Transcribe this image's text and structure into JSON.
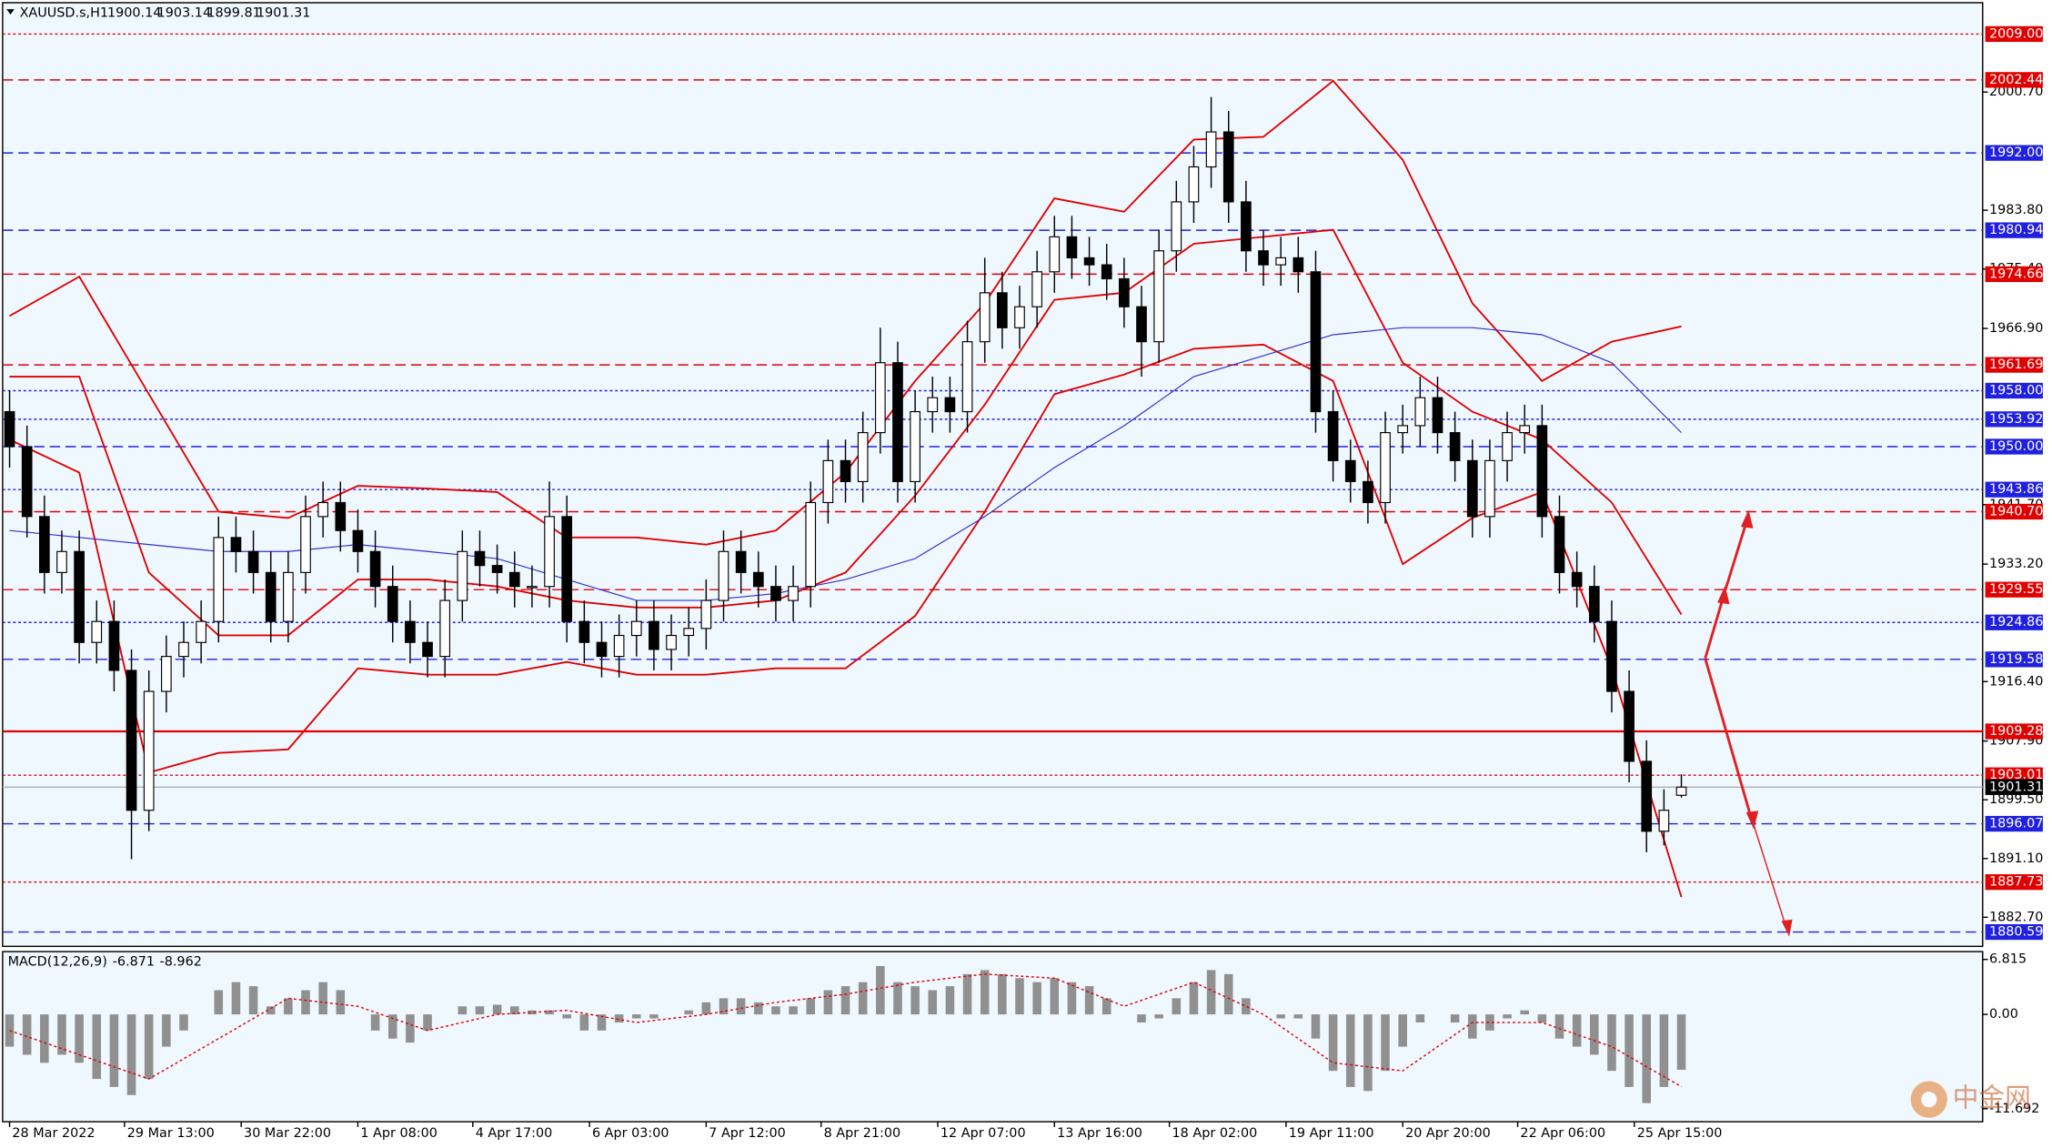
{
  "chart_data": {
    "type": "candlestick",
    "title": "XAUUSD.s,H1",
    "up_color": "#ffffff",
    "down_color": "#000000",
    "edge_color": "#000000",
    "open": [
      1955,
      1950,
      1940,
      1932,
      1935,
      1922,
      1925,
      1918,
      1898,
      1915,
      1920,
      1922,
      1925,
      1937,
      1935,
      1932,
      1925,
      1932,
      1940,
      1942,
      1938,
      1935,
      1930,
      1925,
      1922,
      1920,
      1928,
      1935,
      1933,
      1932,
      1930,
      1930,
      1940,
      1925,
      1922,
      1920,
      1923,
      1925,
      1921,
      1923,
      1924,
      1928,
      1935,
      1932,
      1930,
      1928,
      1930,
      1942,
      1948,
      1945,
      1952,
      1962,
      1945,
      1955,
      1957,
      1955,
      1965,
      1972,
      1967,
      1970,
      1975,
      1980,
      1977,
      1976,
      1974,
      1970,
      1965,
      1978,
      1985,
      1990,
      1995,
      1985,
      1978,
      1976,
      1977,
      1975,
      1955,
      1948,
      1945,
      1942,
      1952,
      1953,
      1957,
      1952,
      1948,
      1940,
      1948,
      1952,
      1953,
      1940,
      1932,
      1930,
      1925,
      1915,
      1905,
      1895,
      1900.14
    ],
    "high": [
      1958,
      1953,
      1943,
      1938,
      1938,
      1928,
      1928,
      1921,
      1918,
      1923,
      1925,
      1928,
      1940,
      1940,
      1938,
      1935,
      1935,
      1943,
      1945,
      1945,
      1941,
      1938,
      1933,
      1928,
      1925,
      1931,
      1938,
      1938,
      1936,
      1935,
      1933,
      1945,
      1943,
      1928,
      1925,
      1926,
      1928,
      1928,
      1926,
      1927,
      1931,
      1938,
      1938,
      1935,
      1933,
      1933,
      1945,
      1951,
      1951,
      1955,
      1967,
      1965,
      1958,
      1960,
      1960,
      1968,
      1977,
      1975,
      1973,
      1978,
      1983,
      1983,
      1980,
      1979,
      1977,
      1973,
      1981,
      1988,
      1993,
      2000,
      1998,
      1988,
      1981,
      1980,
      1980,
      1978,
      1958,
      1951,
      1948,
      1955,
      1956,
      1960,
      1960,
      1955,
      1951,
      1951,
      1955,
      1956,
      1956,
      1943,
      1935,
      1933,
      1928,
      1918,
      1908,
      1901,
      1903.14
    ],
    "low": [
      1947,
      1937,
      1929,
      1929,
      1919,
      1919,
      1915,
      1891,
      1895,
      1912,
      1917,
      1919,
      1922,
      1932,
      1929,
      1922,
      1922,
      1929,
      1937,
      1935,
      1932,
      1927,
      1922,
      1919,
      1917,
      1917,
      1925,
      1930,
      1929,
      1927,
      1927,
      1927,
      1922,
      1919,
      1917,
      1917,
      1920,
      1918,
      1918,
      1920,
      1921,
      1925,
      1929,
      1927,
      1925,
      1925,
      1927,
      1939,
      1942,
      1942,
      1949,
      1942,
      1942,
      1952,
      1952,
      1952,
      1962,
      1964,
      1964,
      1967,
      1972,
      1974,
      1973,
      1971,
      1967,
      1960,
      1962,
      1975,
      1982,
      1987,
      1982,
      1975,
      1973,
      1973,
      1972,
      1952,
      1945,
      1942,
      1939,
      1939,
      1949,
      1950,
      1949,
      1945,
      1937,
      1937,
      1945,
      1949,
      1937,
      1929,
      1927,
      1922,
      1912,
      1902,
      1892,
      1893,
      1899.81
    ],
    "close": [
      1950,
      1940,
      1932,
      1935,
      1922,
      1925,
      1918,
      1898,
      1915,
      1920,
      1922,
      1925,
      1937,
      1935,
      1932,
      1925,
      1932,
      1940,
      1942,
      1938,
      1935,
      1930,
      1925,
      1922,
      1920,
      1928,
      1935,
      1933,
      1932,
      1930,
      1930,
      1940,
      1925,
      1922,
      1920,
      1923,
      1925,
      1921,
      1923,
      1924,
      1928,
      1935,
      1932,
      1930,
      1928,
      1930,
      1942,
      1948,
      1945,
      1952,
      1962,
      1945,
      1955,
      1957,
      1955,
      1965,
      1972,
      1967,
      1970,
      1975,
      1980,
      1977,
      1976,
      1974,
      1970,
      1965,
      1978,
      1985,
      1990,
      1995,
      1985,
      1978,
      1976,
      1977,
      1975,
      1955,
      1948,
      1945,
      1942,
      1952,
      1953,
      1957,
      1952,
      1948,
      1940,
      1948,
      1952,
      1953,
      1940,
      1932,
      1930,
      1925,
      1915,
      1905,
      1895,
      1898,
      1901.31
    ],
    "xlim": [
      -0.4,
      113.3
    ],
    "xticks": [
      {
        "value": 0,
        "label": "28 Mar 2022"
      },
      {
        "value": 6.6,
        "label": "29 Mar 13:00"
      },
      {
        "value": 13.3,
        "label": "30 Mar 22:00"
      },
      {
        "value": 20,
        "label": "1 Apr 08:00"
      },
      {
        "value": 26.6,
        "label": "4 Apr 17:00"
      },
      {
        "value": 33.3,
        "label": "6 Apr 03:00"
      },
      {
        "value": 40,
        "label": "7 Apr 12:00"
      },
      {
        "value": 46.6,
        "label": "8 Apr 21:00"
      },
      {
        "value": 53.3,
        "label": "12 Apr 07:00"
      },
      {
        "value": 60,
        "label": "13 Apr 16:00"
      },
      {
        "value": 66.6,
        "label": "18 Apr 02:00"
      },
      {
        "value": 73.3,
        "label": "19 Apr 11:00"
      },
      {
        "value": 80,
        "label": "20 Apr 20:00"
      },
      {
        "value": 86.6,
        "label": "22 Apr 06:00"
      },
      {
        "value": 93.3,
        "label": "25 Apr 15:00"
      }
    ],
    "ylim": [
      1878.54,
      2013.48
    ],
    "yticks": [
      {
        "value": 2000.7,
        "label": "2000.70"
      },
      {
        "value": 1983.8,
        "label": "1983.80"
      },
      {
        "value": 1975.4,
        "label": "1975.40"
      },
      {
        "value": 1966.9,
        "label": "1966.90"
      },
      {
        "value": 1941.7,
        "label": "1941.70"
      },
      {
        "value": 1933.2,
        "label": "1933.20"
      },
      {
        "value": 1916.4,
        "label": "1916.40"
      },
      {
        "value": 1907.9,
        "label": "1907.90"
      },
      {
        "value": 1899.5,
        "label": "1899.50"
      },
      {
        "value": 1891.1,
        "label": "1891.10"
      },
      {
        "value": 1882.7,
        "label": "1882.70"
      }
    ],
    "levels": [
      {
        "value": 2009,
        "label": "2009.00",
        "color": "#e00000",
        "style": "dot"
      },
      {
        "value": 2002.44,
        "label": "2002.44",
        "color": "#e00000",
        "style": "dash"
      },
      {
        "value": 1992,
        "label": "1992.00",
        "color": "#2020e0",
        "style": "dash"
      },
      {
        "value": 1980.94,
        "label": "1980.94",
        "color": "#2020e0",
        "style": "dash"
      },
      {
        "value": 1974.66,
        "label": "1974.66",
        "color": "#e00000",
        "style": "dash"
      },
      {
        "value": 1961.69,
        "label": "1961.69",
        "color": "#e00000",
        "style": "dash"
      },
      {
        "value": 1958,
        "label": "1958.00",
        "color": "#2020e0",
        "style": "dot"
      },
      {
        "value": 1953.92,
        "label": "1953.92",
        "color": "#2020e0",
        "style": "dot"
      },
      {
        "value": 1950,
        "label": "1950.00",
        "color": "#2020e0",
        "style": "dash"
      },
      {
        "value": 1943.86,
        "label": "1943.86",
        "color": "#2020e0",
        "style": "dot"
      },
      {
        "value": 1940.7,
        "label": "1940.70",
        "color": "#e00000",
        "style": "dash"
      },
      {
        "value": 1929.55,
        "label": "1929.55",
        "color": "#e00000",
        "style": "dash"
      },
      {
        "value": 1924.86,
        "label": "1924.86",
        "color": "#2020e0",
        "style": "dot"
      },
      {
        "value": 1919.58,
        "label": "1919.58",
        "color": "#2020e0",
        "style": "dash"
      },
      {
        "value": 1909.28,
        "label": "1909.28",
        "color": "#e00000",
        "style": "solid"
      },
      {
        "value": 1903.01,
        "label": "1903.01",
        "color": "#e00000",
        "style": "dot"
      },
      {
        "value": 1896.07,
        "label": "1896.07",
        "color": "#2020e0",
        "style": "dash"
      },
      {
        "value": 1887.73,
        "label": "1887.73",
        "color": "#e00000",
        "style": "dot"
      },
      {
        "value": 1880.59,
        "label": "1880.59",
        "color": "#2020e0",
        "style": "dash"
      }
    ],
    "bands": {
      "color": "#e00000",
      "x": [
        0,
        4,
        8,
        12,
        16,
        20,
        24,
        28,
        32,
        36,
        40,
        44,
        48,
        52,
        56,
        60,
        64,
        68,
        72,
        76,
        80,
        84,
        88,
        92,
        96
      ],
      "upper": [
        1968.7,
        1974.3,
        1957.5,
        1940.7,
        1939.8,
        1944.4,
        1944,
        1943.5,
        1937,
        1937,
        1936,
        1938,
        1946.3,
        1959.4,
        1970.5,
        1985.5,
        1983.6,
        1993.9,
        1994.3,
        2002.3,
        1991,
        1970.5,
        1959.4,
        1965,
        1967.2
      ],
      "middle": [
        1960,
        1960,
        1932,
        1923,
        1923,
        1931,
        1931,
        1930,
        1928,
        1927,
        1927,
        1928,
        1932,
        1943,
        1956,
        1971,
        1972,
        1979,
        1980,
        1981,
        1962,
        1955,
        1951,
        1942,
        1926
      ],
      "lower": [
        1951,
        1946.3,
        1903.4,
        1906.2,
        1906.7,
        1918.3,
        1917.4,
        1917.4,
        1919.2,
        1917.4,
        1917.4,
        1918.3,
        1918.3,
        1925.8,
        1940.7,
        1957.5,
        1960.3,
        1964,
        1964.6,
        1959.4,
        1933.2,
        1939.8,
        1943.5,
        1918.3,
        1885.6
      ]
    },
    "ma": {
      "color": "#3030d0",
      "x": [
        0,
        4,
        8,
        12,
        16,
        20,
        24,
        28,
        32,
        36,
        40,
        44,
        48,
        52,
        56,
        60,
        64,
        68,
        72,
        76,
        80,
        84,
        88,
        92,
        96
      ],
      "values": [
        1938,
        1937,
        1936,
        1935,
        1935,
        1936,
        1935,
        1934,
        1931,
        1928,
        1928,
        1929,
        1931,
        1934,
        1940,
        1947,
        1953,
        1960,
        1963,
        1966,
        1967,
        1967,
        1966,
        1962,
        1952
      ]
    },
    "macd": {
      "title": "MACD(12,26,9)",
      "color": "#909090",
      "signal_color": "#e00000",
      "ylim": [
        -13.31,
        7.79
      ],
      "yticks": [
        {
          "value": 6.815,
          "label": "6.815"
        },
        {
          "value": 0,
          "label": "0.00"
        },
        {
          "value": -11.692,
          "label": "-11.692"
        }
      ],
      "values": [
        -4,
        -5,
        -6,
        -5,
        -6,
        -8,
        -9,
        -10,
        -8,
        -4,
        -2,
        0,
        3,
        4,
        3.5,
        1,
        2,
        3,
        4,
        3,
        0,
        -2,
        -3,
        -3.5,
        -2,
        0,
        1,
        1,
        1.2,
        1,
        0.5,
        0.5,
        -0.5,
        -2,
        -2,
        -1,
        -0.5,
        -0.5,
        0,
        0.5,
        1.5,
        2,
        2,
        1.5,
        1,
        1,
        2,
        3,
        3.5,
        4,
        6,
        4,
        3.5,
        3,
        3.5,
        5,
        5.5,
        5,
        4.5,
        4,
        4.5,
        4,
        3.5,
        2,
        0,
        -1,
        -0.5,
        2,
        4,
        5.5,
        5,
        2,
        0,
        -0.5,
        -0.5,
        -3,
        -7,
        -9,
        -9.5,
        -7,
        -4,
        -1,
        0,
        -1,
        -3,
        -2,
        -0.5,
        0.5,
        -1,
        -3,
        -4,
        -5,
        -7,
        -9,
        -11,
        -9,
        -6.871
      ],
      "signal": {
        "x": [
          0,
          4,
          8,
          12,
          16,
          20,
          24,
          28,
          32,
          36,
          40,
          44,
          48,
          52,
          56,
          60,
          64,
          68,
          72,
          76,
          80,
          84,
          88,
          92,
          96
        ],
        "values": [
          -2,
          -5,
          -8,
          -3,
          2,
          1,
          -2,
          0,
          0.5,
          -1,
          0,
          1.5,
          2.5,
          4,
          5,
          4.5,
          1,
          4,
          0,
          -6,
          -7,
          -1,
          -1,
          -4,
          -8.962
        ]
      }
    },
    "watermark": "中金网"
  }
}
